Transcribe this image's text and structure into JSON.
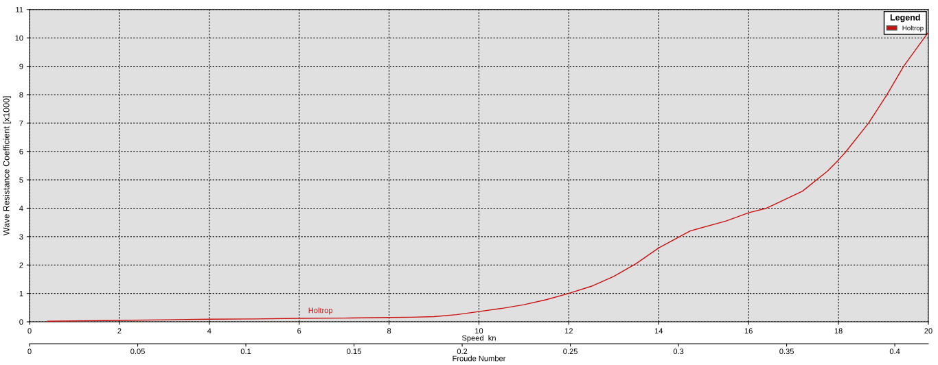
{
  "chart_data": {
    "type": "line",
    "xlabel": "Speed  kn",
    "ylabel": "Wave Resistance Coefficient [x1000]",
    "x2label": "Froude Number",
    "legend_title": "Legend",
    "x": [
      0.4,
      1,
      2,
      3,
      4,
      5,
      6,
      7,
      8,
      8.5,
      9,
      9.5,
      10,
      10.5,
      11,
      11.5,
      12,
      12.5,
      13,
      13.5,
      14,
      14.7,
      15.5,
      16,
      16.4,
      17.2,
      17.75,
      18,
      18.17,
      18.67,
      19.08,
      19.45,
      20
    ],
    "series": [
      {
        "name": "Holtrop",
        "color": "#cc1010",
        "values": [
          0.02,
          0.03,
          0.05,
          0.07,
          0.09,
          0.1,
          0.12,
          0.13,
          0.15,
          0.16,
          0.18,
          0.25,
          0.36,
          0.47,
          0.6,
          0.78,
          1.0,
          1.25,
          1.6,
          2.05,
          2.6,
          3.2,
          3.55,
          3.84,
          4.0,
          4.6,
          5.3,
          5.7,
          6.0,
          7.0,
          8.0,
          9.0,
          10.2
        ]
      }
    ],
    "annotations": [
      {
        "text": "Holtrop",
        "x": 6.2,
        "y": 0.12
      }
    ],
    "xlim": [
      0,
      20
    ],
    "xticks": [
      0,
      2,
      4,
      6,
      8,
      10,
      12,
      14,
      16,
      18,
      20
    ],
    "ylim": [
      0,
      11
    ],
    "yticks": [
      0,
      1,
      2,
      3,
      4,
      5,
      6,
      7,
      8,
      9,
      10,
      11
    ],
    "x2lim": [
      0,
      0.4155
    ],
    "x2ticks": [
      0,
      0.05,
      0.1,
      0.15,
      0.2,
      0.25,
      0.3,
      0.35,
      0.4
    ],
    "grid": true,
    "legend": "top right",
    "line_style": "solid",
    "marker": "none"
  }
}
